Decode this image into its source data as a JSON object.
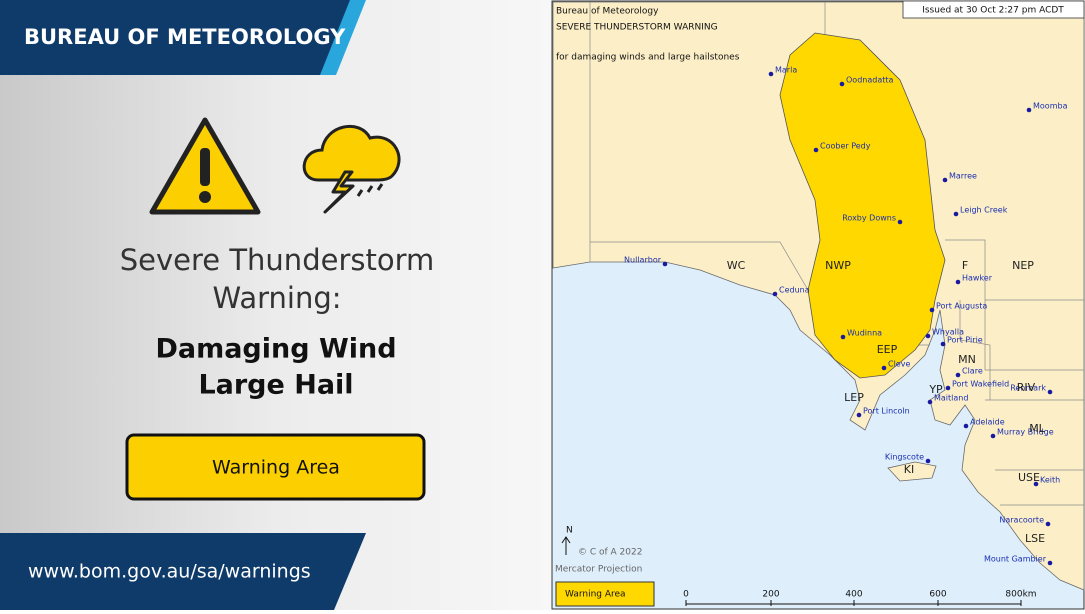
{
  "header": {
    "agency": "BUREAU OF METEOROLOGY"
  },
  "warning": {
    "title_lines": [
      "Severe Thunderstorm",
      "Warning:"
    ],
    "hazards": [
      "Damaging Wind",
      "Large Hail"
    ],
    "button": "Warning Area"
  },
  "footer": {
    "url": "www.bom.gov.au/sa/warnings"
  },
  "map": {
    "agency": "Bureau of Meteorology",
    "title": "SEVERE THUNDERSTORM WARNING",
    "subtitle": "for damaging winds and large hailstones",
    "issued": "Issued at 30 Oct 2:27 pm ACDT",
    "copyright": "© C of A 2022",
    "projection": "Mercator Projection",
    "north": "N",
    "legend": "Warning Area",
    "scale": [
      "0",
      "200",
      "400",
      "600",
      "800km"
    ],
    "towns": [
      "Marla",
      "Oodnadatta",
      "Moomba",
      "Coober Pedy",
      "Marree",
      "Leigh Creek",
      "Roxby Downs",
      "Nullarbor",
      "Ceduna",
      "Hawker",
      "Port Augusta",
      "Wudinna",
      "Whyalla",
      "Port Pirie",
      "Clare",
      "Port Wakefield",
      "Cleve",
      "Maitland",
      "Renmark",
      "Port Lincoln",
      "Adelaide",
      "Murray Bridge",
      "Kingscote",
      "Keith",
      "Naracoorte",
      "Mount Gambier"
    ],
    "regions": [
      "WC",
      "NWP",
      "F",
      "NEP",
      "EEP",
      "MN",
      "YP",
      "RIV",
      "LEP",
      "ML",
      "KI",
      "USE",
      "LSE"
    ]
  }
}
